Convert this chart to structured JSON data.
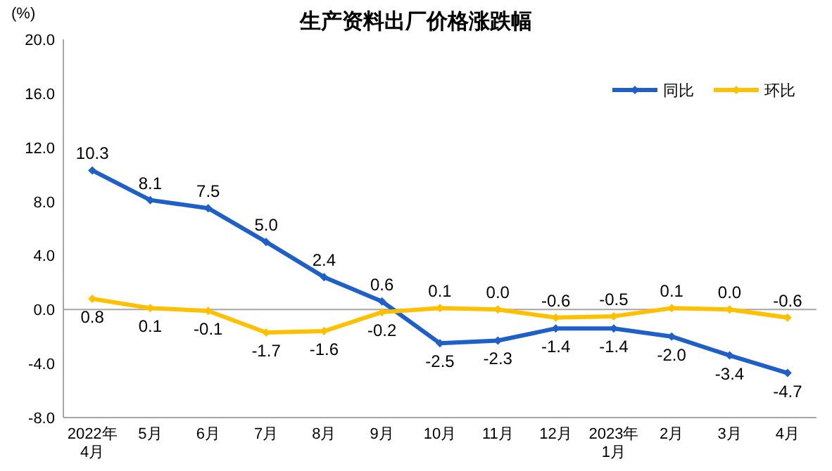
{
  "chart_data": {
    "type": "line",
    "title": "生产资料出厂价格涨跌幅",
    "ylabel": "(%)",
    "categories": [
      "2022年\n4月",
      "5月",
      "6月",
      "7月",
      "8月",
      "9月",
      "10月",
      "11月",
      "12月",
      "2023年\n1月",
      "2月",
      "3月",
      "4月"
    ],
    "series": [
      {
        "name": "同比",
        "color": "#1f5fc8",
        "values": [
          10.3,
          8.1,
          7.5,
          5.0,
          2.4,
          0.6,
          -2.5,
          -2.3,
          -1.4,
          -1.4,
          -2.0,
          -3.4,
          -4.7
        ],
        "value_labels": [
          "10.3",
          "8.1",
          "7.5",
          "5.0",
          "2.4",
          "0.6",
          "-2.5",
          "-2.3",
          "-1.4",
          "-1.4",
          "-2.0",
          "-3.4",
          "-4.7"
        ]
      },
      {
        "name": "环比",
        "color": "#ffc000",
        "values": [
          0.8,
          0.1,
          -0.1,
          -1.7,
          -1.6,
          -0.2,
          0.1,
          0.0,
          -0.6,
          -0.5,
          0.1,
          0.0,
          -0.6
        ],
        "value_labels": [
          "0.8",
          "0.1",
          "-0.1",
          "-1.7",
          "-1.6",
          "-0.2",
          "0.1",
          "0.0",
          "-0.6",
          "-0.5",
          "0.1",
          "0.0",
          "-0.6"
        ]
      }
    ],
    "ylim": [
      -8,
      20
    ],
    "yticks": [
      {
        "value": -8,
        "label": "-8.0"
      },
      {
        "value": -4,
        "label": "-4.0"
      },
      {
        "value": 0,
        "label": "0.0"
      },
      {
        "value": 4,
        "label": "4.0"
      },
      {
        "value": 8,
        "label": "8.0"
      },
      {
        "value": 12,
        "label": "12.0"
      },
      {
        "value": 16,
        "label": "16.0"
      },
      {
        "value": 20,
        "label": "20.0"
      }
    ],
    "ref_lines": [
      {
        "axis": "y",
        "value": 0,
        "color": "#a6a6a6"
      }
    ],
    "legend": "top right",
    "marker": "diamond",
    "line_style": "solid",
    "grid": false
  }
}
